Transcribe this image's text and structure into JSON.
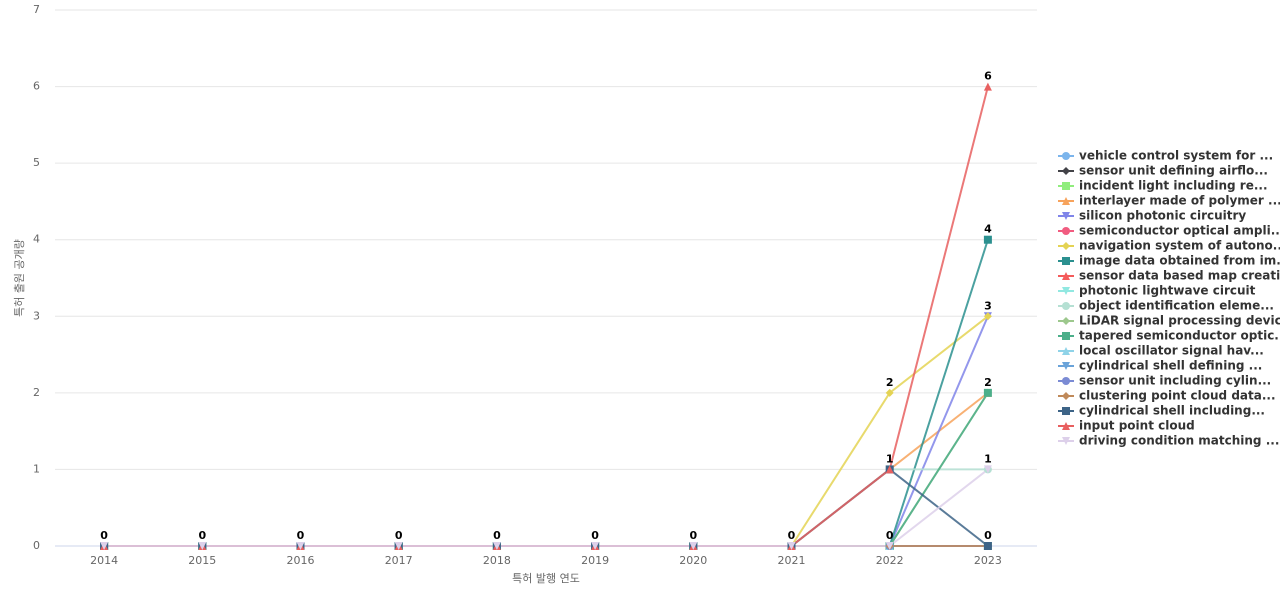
{
  "chart_data": {
    "type": "line",
    "x_label": "특허 발행 연도",
    "y_label": "특허 출원 공개량",
    "categories": [
      "2014",
      "2015",
      "2016",
      "2017",
      "2018",
      "2019",
      "2020",
      "2021",
      "2022",
      "2023"
    ],
    "ylim": [
      0,
      7
    ],
    "yticks": [
      0,
      1,
      2,
      3,
      4,
      5,
      6,
      7
    ],
    "grid": true,
    "legend": "right",
    "series": [
      {
        "name": "vehicle control system for ...",
        "color": "#7cb5ec",
        "marker": "circle",
        "values": [
          0,
          0,
          0,
          0,
          0,
          0,
          0,
          0,
          0,
          0
        ]
      },
      {
        "name": "sensor unit defining airflo...",
        "color": "#434348",
        "marker": "diamond",
        "values": [
          0,
          0,
          0,
          0,
          0,
          0,
          0,
          0,
          0,
          0
        ]
      },
      {
        "name": "incident light including re...",
        "color": "#90ed7d",
        "marker": "square",
        "values": [
          0,
          0,
          0,
          0,
          0,
          0,
          0,
          0,
          0,
          0
        ]
      },
      {
        "name": "interlayer made of polymer ...",
        "color": "#f7a35c",
        "marker": "triangle",
        "values": [
          0,
          0,
          0,
          0,
          0,
          0,
          0,
          0,
          1,
          2
        ]
      },
      {
        "name": "silicon photonic circuitry",
        "color": "#8085e9",
        "marker": "triangle-down",
        "values": [
          0,
          0,
          0,
          0,
          0,
          0,
          0,
          0,
          0,
          3
        ]
      },
      {
        "name": "semiconductor optical ampli...",
        "color": "#f15c80",
        "marker": "circle",
        "values": [
          0,
          0,
          0,
          0,
          0,
          0,
          0,
          0,
          0,
          0
        ]
      },
      {
        "name": "navigation system of autono...",
        "color": "#e4d354",
        "marker": "diamond",
        "values": [
          0,
          0,
          0,
          0,
          0,
          0,
          0,
          0,
          2,
          3
        ]
      },
      {
        "name": "image data obtained from im...",
        "color": "#2b908f",
        "marker": "square",
        "values": [
          0,
          0,
          0,
          0,
          0,
          0,
          0,
          0,
          0,
          4
        ]
      },
      {
        "name": "sensor data based map creation",
        "color": "#f45b5b",
        "marker": "triangle",
        "values": [
          0,
          0,
          0,
          0,
          0,
          0,
          0,
          0,
          0,
          0
        ]
      },
      {
        "name": "photonic lightwave circuit",
        "color": "#91e8e1",
        "marker": "triangle-down",
        "values": [
          0,
          0,
          0,
          0,
          0,
          0,
          0,
          0,
          0,
          0
        ]
      },
      {
        "name": "object identification eleme...",
        "color": "#b5e0d3",
        "marker": "circle",
        "values": [
          0,
          0,
          0,
          0,
          0,
          0,
          0,
          0,
          1,
          1
        ]
      },
      {
        "name": "LiDAR signal processing device",
        "color": "#9dc88d",
        "marker": "diamond",
        "values": [
          0,
          0,
          0,
          0,
          0,
          0,
          0,
          0,
          0,
          2
        ]
      },
      {
        "name": "tapered semiconductor optic...",
        "color": "#4caf8a",
        "marker": "square",
        "values": [
          0,
          0,
          0,
          0,
          0,
          0,
          0,
          0,
          0,
          2
        ]
      },
      {
        "name": "local oscillator signal hav...",
        "color": "#8fd3e8",
        "marker": "triangle",
        "values": [
          0,
          0,
          0,
          0,
          0,
          0,
          0,
          0,
          0,
          0
        ]
      },
      {
        "name": "cylindrical shell defining ...",
        "color": "#6aa3d9",
        "marker": "triangle-down",
        "values": [
          0,
          0,
          0,
          0,
          0,
          0,
          0,
          0,
          0,
          0
        ]
      },
      {
        "name": "sensor unit including cylin...",
        "color": "#7b8bd4",
        "marker": "circle",
        "values": [
          0,
          0,
          0,
          0,
          0,
          0,
          0,
          0,
          0,
          0
        ]
      },
      {
        "name": "clustering point cloud data...",
        "color": "#c08a5a",
        "marker": "diamond",
        "values": [
          0,
          0,
          0,
          0,
          0,
          0,
          0,
          0,
          0,
          0
        ]
      },
      {
        "name": "cylindrical shell including...",
        "color": "#3d6487",
        "marker": "square",
        "values": [
          0,
          0,
          0,
          0,
          0,
          0,
          0,
          0,
          1,
          0
        ]
      },
      {
        "name": "input point cloud",
        "color": "#e86060",
        "marker": "triangle",
        "values": [
          0,
          0,
          0,
          0,
          0,
          0,
          0,
          0,
          1,
          6
        ]
      },
      {
        "name": "driving condition matching ...",
        "color": "#ddd0ea",
        "marker": "triangle-down",
        "values": [
          0,
          0,
          0,
          0,
          0,
          0,
          0,
          0,
          0,
          1
        ]
      }
    ]
  }
}
